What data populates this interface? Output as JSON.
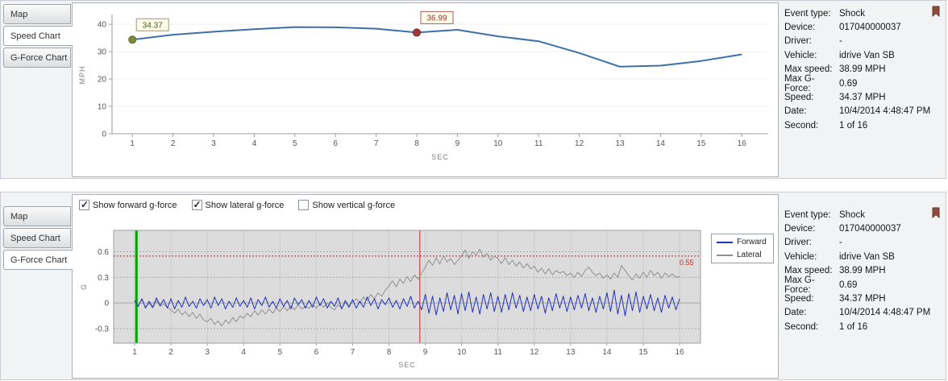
{
  "top_panel": {
    "tabs": [
      {
        "label": "Map",
        "selected": false
      },
      {
        "label": "Speed Chart",
        "selected": true
      },
      {
        "label": "G-Force Chart",
        "selected": false
      }
    ]
  },
  "bottom_panel": {
    "tabs": [
      {
        "label": "Map",
        "selected": false
      },
      {
        "label": "Speed Chart",
        "selected": false
      },
      {
        "label": "G-Force Chart",
        "selected": true
      }
    ],
    "checkboxes": [
      {
        "label": "Show forward g-force",
        "checked": true
      },
      {
        "label": "Show lateral g-force",
        "checked": true
      },
      {
        "label": "Show vertical g-force",
        "checked": false
      }
    ]
  },
  "event_info": {
    "rows": [
      {
        "label": "Event type:",
        "value": "Shock"
      },
      {
        "label": "Device:",
        "value": "017040000037"
      },
      {
        "label": "Driver:",
        "value": "-"
      },
      {
        "label": "Vehicle:",
        "value": "idrive Van SB"
      },
      {
        "label": "Max speed:",
        "value": "38.99 MPH"
      },
      {
        "label": "Max G-Force:",
        "value": "0.69"
      },
      {
        "label": "Speed:",
        "value": "34.37 MPH"
      },
      {
        "label": "Date:",
        "value": "10/4/2014 4:48:47 PM"
      },
      {
        "label": "Second:",
        "value": "1 of 16"
      }
    ]
  },
  "chart_data": [
    {
      "id": "speed",
      "type": "line",
      "title": "",
      "xlabel": "SEC",
      "ylabel": "MPH",
      "ylim": [
        0,
        43
      ],
      "yticks": [
        0,
        10,
        20,
        30,
        40
      ],
      "xticks": [
        1,
        2,
        3,
        4,
        5,
        6,
        7,
        8,
        9,
        10,
        11,
        12,
        13,
        14,
        15,
        16
      ],
      "grid": "faint-horizontal",
      "x": [
        1,
        2,
        3,
        4,
        5,
        6,
        7,
        8,
        9,
        10,
        11,
        12,
        13,
        14,
        15,
        16
      ],
      "series": [
        {
          "name": "Speed",
          "color": "#3d6fa8",
          "values": [
            34.37,
            36.2,
            37.3,
            38.2,
            39.0,
            38.9,
            38.4,
            36.99,
            38.0,
            35.6,
            33.8,
            29.5,
            24.5,
            24.9,
            26.6,
            29.0
          ]
        }
      ],
      "markers": [
        {
          "x": 1,
          "y": 34.37,
          "label": "34.37",
          "dot_color": "#7d8c3c",
          "dot_border": "#5d6a25",
          "box_border": "#9a9a7a",
          "text_color": "#4c5a22"
        },
        {
          "x": 8,
          "y": 36.99,
          "label": "36.99",
          "dot_color": "#9e3b3b",
          "dot_border": "#722222",
          "box_border": "#b06060",
          "text_color": "#993333"
        }
      ]
    },
    {
      "id": "gforce",
      "type": "line",
      "title": "",
      "xlabel": "SEC",
      "ylabel": "G",
      "ylim": [
        -0.47,
        0.85
      ],
      "yticks": [
        -0.3,
        0,
        0.3,
        0.6
      ],
      "xticks": [
        1,
        2,
        3,
        4,
        5,
        6,
        7,
        8,
        9,
        10,
        11,
        12,
        13,
        14,
        15,
        16
      ],
      "plot_bg": "#dcdcdc",
      "legend_position": "right-top",
      "threshold": {
        "y": 0.55,
        "label": "0.55",
        "color": "#cc2222"
      },
      "vlines": [
        {
          "x": 1.05,
          "color": "#00a400",
          "width": 3
        },
        {
          "x": 8.85,
          "color": "#cc2222",
          "width": 1
        }
      ],
      "x_start": 1,
      "x_step": 0.1,
      "series": [
        {
          "name": "Forward",
          "color": "#2233bb",
          "values": [
            0.03,
            -0.04,
            0.05,
            -0.06,
            0.02,
            -0.05,
            0.06,
            -0.03,
            0.04,
            -0.06,
            0.05,
            -0.07,
            0.03,
            -0.05,
            0.07,
            -0.04,
            0.02,
            -0.06,
            0.05,
            -0.03,
            0.04,
            -0.06,
            0.07,
            -0.03,
            0.05,
            -0.07,
            0.02,
            -0.05,
            0.06,
            -0.04,
            0.03,
            -0.05,
            0.06,
            -0.07,
            0.04,
            -0.03,
            0.07,
            -0.05,
            0.02,
            -0.06,
            0.05,
            -0.04,
            0.03,
            -0.07,
            0.06,
            -0.02,
            0.04,
            -0.06,
            0.03,
            -0.05,
            0.07,
            -0.03,
            0.05,
            -0.06,
            0.02,
            -0.04,
            0.06,
            -0.07,
            0.03,
            -0.05,
            0.04,
            -0.06,
            0.02,
            -0.05,
            0.07,
            -0.03,
            0.05,
            -0.07,
            0.04,
            -0.02,
            0.06,
            -0.05,
            0.03,
            -0.07,
            0.05,
            -0.04,
            0.08,
            -0.06,
            0.02,
            -0.08,
            0.1,
            -0.12,
            0.08,
            -0.14,
            0.06,
            -0.1,
            0.12,
            -0.08,
            0.09,
            -0.13,
            0.11,
            -0.09,
            0.13,
            -0.11,
            0.07,
            -0.13,
            0.1,
            -0.07,
            0.12,
            -0.1,
            0.08,
            -0.11,
            0.1,
            -0.08,
            0.12,
            -0.06,
            0.09,
            -0.1,
            0.07,
            -0.09,
            0.1,
            -0.07,
            0.08,
            -0.12,
            0.06,
            -0.09,
            0.11,
            -0.06,
            0.08,
            -0.1,
            0.07,
            -0.08,
            0.09,
            -0.06,
            0.11,
            -0.09,
            0.06,
            -0.11,
            0.08,
            -0.07,
            0.12,
            -0.1,
            0.15,
            -0.13,
            0.09,
            -0.15,
            0.11,
            -0.09,
            0.13,
            -0.11,
            0.08,
            -0.07,
            0.1,
            -0.09,
            0.06,
            -0.11,
            0.09,
            -0.06,
            0.07,
            -0.08,
            0.05
          ]
        },
        {
          "name": "Lateral",
          "color": "#909090",
          "values": [
            0.02,
            -0.03,
            0.04,
            -0.05,
            0.0,
            -0.06,
            0.03,
            -0.04,
            -0.01,
            -0.05,
            -0.08,
            -0.12,
            -0.07,
            -0.14,
            -0.1,
            -0.16,
            -0.11,
            -0.18,
            -0.13,
            -0.2,
            -0.22,
            -0.18,
            -0.25,
            -0.21,
            -0.27,
            -0.2,
            -0.24,
            -0.17,
            -0.22,
            -0.15,
            -0.18,
            -0.12,
            -0.16,
            -0.09,
            -0.14,
            -0.08,
            -0.13,
            -0.07,
            -0.12,
            -0.06,
            -0.1,
            -0.04,
            -0.09,
            -0.03,
            -0.08,
            -0.02,
            -0.07,
            -0.04,
            -0.06,
            -0.02,
            -0.06,
            -0.01,
            -0.05,
            0.0,
            -0.05,
            -0.08,
            -0.02,
            -0.06,
            0.0,
            -0.03,
            0.01,
            0.05,
            0.0,
            0.07,
            0.03,
            0.1,
            0.05,
            0.12,
            0.08,
            0.15,
            0.2,
            0.26,
            0.19,
            0.28,
            0.23,
            0.31,
            0.25,
            0.33,
            0.28,
            0.35,
            0.42,
            0.5,
            0.44,
            0.53,
            0.46,
            0.55,
            0.48,
            0.52,
            0.45,
            0.5,
            0.55,
            0.62,
            0.52,
            0.6,
            0.56,
            0.63,
            0.54,
            0.58,
            0.5,
            0.55,
            0.52,
            0.46,
            0.53,
            0.45,
            0.5,
            0.43,
            0.48,
            0.41,
            0.46,
            0.4,
            0.43,
            0.36,
            0.41,
            0.34,
            0.4,
            0.33,
            0.38,
            0.35,
            0.37,
            0.32,
            0.35,
            0.3,
            0.36,
            0.31,
            0.38,
            0.42,
            0.36,
            0.32,
            0.35,
            0.29,
            0.33,
            0.28,
            0.35,
            0.3,
            0.44,
            0.38,
            0.32,
            0.27,
            0.34,
            0.29,
            0.36,
            0.3,
            0.38,
            0.32,
            0.36,
            0.29,
            0.35,
            0.31,
            0.34,
            0.3,
            0.31
          ]
        }
      ]
    }
  ]
}
